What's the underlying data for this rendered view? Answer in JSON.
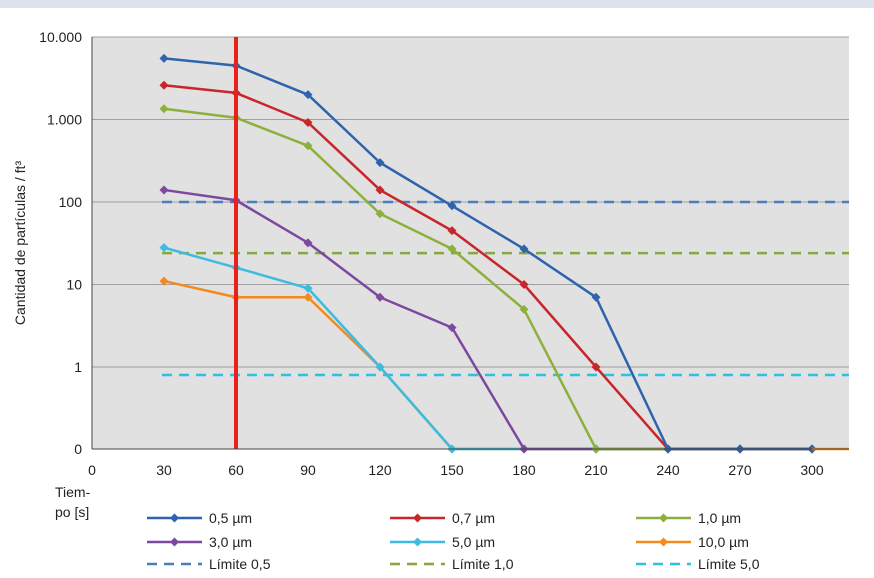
{
  "colors": {
    "plot_bg": "#e1e1e1",
    "grid": "#a0a0a0",
    "marker_line": "#e8211d",
    "s05": "#2f63ad",
    "s07": "#c8262b",
    "s10": "#8db03d",
    "s30": "#7d48a0",
    "s50": "#3dbbe0",
    "s100": "#f28a1d",
    "lim05": "#4a7ec0",
    "lim10": "#86a843",
    "lim50": "#2ec0e0"
  },
  "chart_data": {
    "type": "line",
    "ylabel": "Cantidad de partículas / ft³",
    "xlabel": "Tiem-\npo [s]",
    "xlabel_lines": [
      "Tiem-",
      "po [s]"
    ],
    "x_ticks": [
      0,
      30,
      60,
      90,
      120,
      150,
      180,
      210,
      240,
      270,
      300
    ],
    "x_tick_labels": [
      "0",
      "30",
      "60",
      "90",
      "120",
      "150",
      "180",
      "210",
      "240",
      "270",
      "300"
    ],
    "y_scale": "log (0 shown at baseline)",
    "y_ticks": [
      0,
      1,
      10,
      100,
      1000,
      10000
    ],
    "y_tick_labels": [
      "0",
      "1",
      "10",
      "100",
      "1.000",
      "10.000"
    ],
    "xlim": [
      0,
      310
    ],
    "grid": "horizontal",
    "vertical_marker_x": 60,
    "x": [
      30,
      60,
      90,
      120,
      150,
      180,
      210,
      240,
      270,
      300
    ],
    "series": [
      {
        "name": "0,5 µm",
        "color_key": "s05",
        "marker": "diamond",
        "dashed": false,
        "values": [
          5500,
          4500,
          2000,
          300,
          90,
          27,
          7,
          0,
          0,
          0
        ]
      },
      {
        "name": "0,7 µm",
        "color_key": "s07",
        "marker": "diamond",
        "dashed": false,
        "values": [
          2600,
          2100,
          920,
          140,
          45,
          10,
          1,
          0,
          0,
          0
        ]
      },
      {
        "name": "1,0 µm",
        "color_key": "s10",
        "marker": "diamond",
        "dashed": false,
        "values": [
          1350,
          1050,
          480,
          72,
          27,
          5,
          0,
          0,
          0,
          0
        ]
      },
      {
        "name": "3,0 µm",
        "color_key": "s30",
        "marker": "diamond",
        "dashed": false,
        "values": [
          140,
          105,
          32,
          7,
          3,
          0,
          0,
          0,
          0,
          0
        ]
      },
      {
        "name": "5,0 µm",
        "color_key": "s50",
        "marker": "diamond",
        "dashed": false,
        "values": [
          28,
          16,
          9,
          1,
          0,
          0,
          0,
          0,
          0,
          0
        ]
      },
      {
        "name": "10,0 µm",
        "color_key": "s100",
        "marker": "diamond",
        "dashed": false,
        "values": [
          11,
          7,
          7,
          1,
          0,
          0,
          0,
          0,
          0,
          0
        ]
      },
      {
        "name": "Límite 0,5",
        "color_key": "lim05",
        "marker": "none",
        "dashed": true,
        "limit_value": 100
      },
      {
        "name": "Límite 1,0",
        "color_key": "lim10",
        "marker": "none",
        "dashed": true,
        "limit_value": 24
      },
      {
        "name": "Límite 5,0",
        "color_key": "lim50",
        "marker": "none",
        "dashed": true,
        "limit_value": 0.8
      }
    ],
    "legend_placement": "bottom"
  }
}
